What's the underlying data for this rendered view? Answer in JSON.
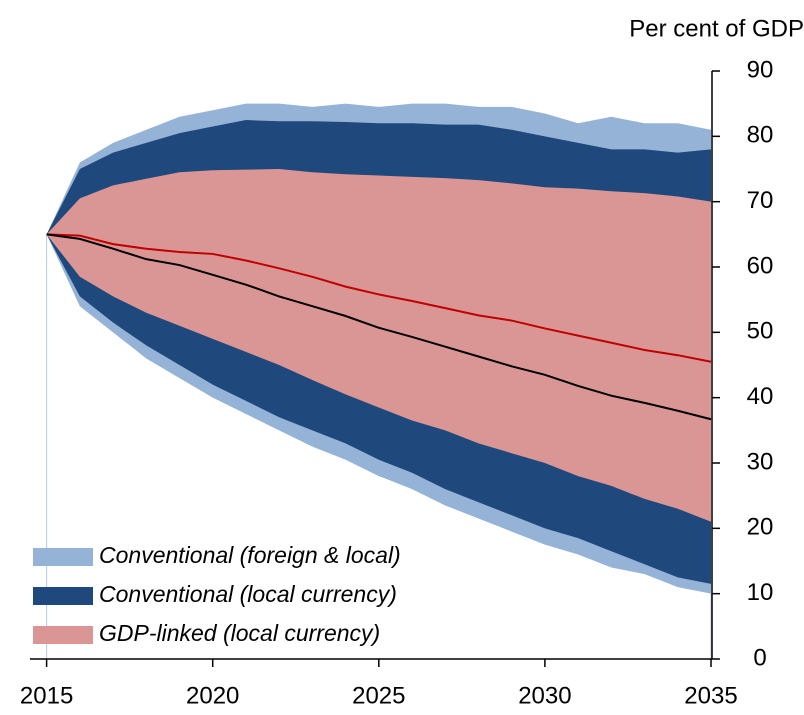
{
  "chart_data": {
    "type": "fan",
    "y_axis_label": "Per cent of GDP",
    "x": [
      2015,
      2016,
      2017,
      2018,
      2019,
      2020,
      2021,
      2022,
      2023,
      2024,
      2025,
      2026,
      2027,
      2028,
      2029,
      2030,
      2031,
      2032,
      2033,
      2034,
      2035
    ],
    "xlim": [
      2014.5,
      2035
    ],
    "xticks": [
      2015,
      2020,
      2025,
      2030,
      2035
    ],
    "ylim": [
      0,
      90
    ],
    "yticks": [
      0,
      10,
      20,
      30,
      40,
      50,
      60,
      70,
      80,
      90
    ],
    "legend": "bottom-left",
    "bands": [
      {
        "name": "Conventional (foreign & local)",
        "color": "#95b3d7",
        "values": [
          65,
          76,
          79,
          81,
          83,
          84,
          85,
          85,
          84.5,
          85,
          84.5,
          85,
          85,
          84.5,
          84.5,
          83.5,
          82,
          83,
          82,
          82,
          81
        ],
        "lower": [
          65,
          54,
          50,
          46,
          43,
          40,
          37.5,
          35,
          32.5,
          30.5,
          28,
          26,
          23.5,
          21.5,
          19.5,
          17.5,
          16,
          14,
          13,
          11,
          10
        ]
      },
      {
        "name": "Conventional (local currency)",
        "color": "#1f497d",
        "values": [
          65,
          75,
          77.5,
          79,
          80.5,
          81.5,
          82.5,
          82.3,
          82.3,
          82.2,
          82,
          82,
          81.8,
          81.8,
          81,
          80,
          79,
          78,
          78,
          77.5,
          78
        ],
        "lower": [
          65,
          55.5,
          51.5,
          48,
          45,
          42,
          39.5,
          37,
          35,
          33,
          30.5,
          28.5,
          26,
          24,
          22,
          20,
          18.5,
          16.5,
          14.5,
          12.5,
          11.5
        ]
      },
      {
        "name": "GDP-linked (local currency)",
        "color": "#d99694",
        "values": [
          65,
          70.5,
          72.5,
          73.5,
          74.5,
          74.8,
          74.9,
          75,
          74.5,
          74.2,
          74,
          73.8,
          73.6,
          73.3,
          72.8,
          72.2,
          72,
          71.6,
          71.3,
          70.8,
          70
        ],
        "lower": [
          65,
          58.5,
          55.5,
          53,
          51,
          49,
          47,
          45,
          42.7,
          40.5,
          38.5,
          36.5,
          35,
          33,
          31.5,
          30,
          28,
          26.5,
          24.5,
          23,
          21
        ]
      }
    ],
    "lines": [
      {
        "color": "#c00000",
        "values": [
          65,
          64.8,
          63.5,
          62.8,
          62.3,
          62,
          61,
          59.8,
          58.5,
          57,
          55.8,
          54.8,
          53.7,
          52.6,
          51.8,
          50.6,
          49.5,
          48.4,
          47.3,
          46.5,
          45.5
        ]
      },
      {
        "color": "#000000",
        "values": [
          65,
          64.3,
          62.8,
          61.2,
          60.3,
          58.8,
          57.3,
          55.5,
          54,
          52.5,
          50.7,
          49.3,
          47.8,
          46.3,
          44.8,
          43.5,
          41.8,
          40.3,
          39.2,
          38,
          36.7
        ]
      }
    ]
  }
}
